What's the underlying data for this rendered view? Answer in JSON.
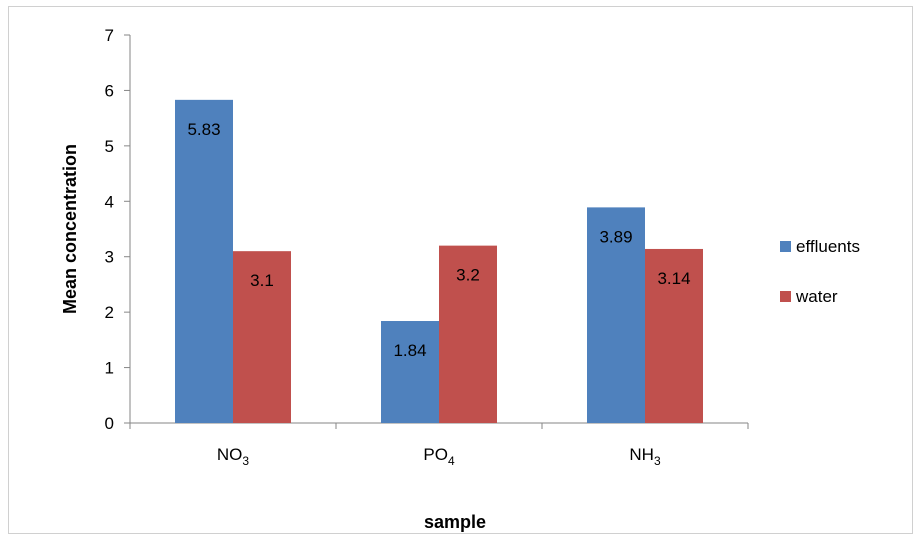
{
  "chart_data": {
    "type": "bar",
    "categories": [
      {
        "base": "NO",
        "sub": "3"
      },
      {
        "base": "PO",
        "sub": "4"
      },
      {
        "base": "NH",
        "sub": "3"
      }
    ],
    "series": [
      {
        "name": "effluents",
        "color": "#4f81bd",
        "values": [
          5.83,
          1.84,
          3.89
        ],
        "labels": [
          "5.83",
          "1.84",
          "3.89"
        ]
      },
      {
        "name": "water",
        "color": "#c0504d",
        "values": [
          3.1,
          3.2,
          3.14
        ],
        "labels": [
          "3.1",
          "3.2",
          "3.14"
        ]
      }
    ],
    "xlabel": "sample",
    "ylabel": "Mean concentration",
    "ylim": [
      0,
      7
    ],
    "yticks": [
      "0",
      "1",
      "2",
      "3",
      "4",
      "5",
      "6",
      "7"
    ],
    "grid": false,
    "legend_position": "right"
  }
}
